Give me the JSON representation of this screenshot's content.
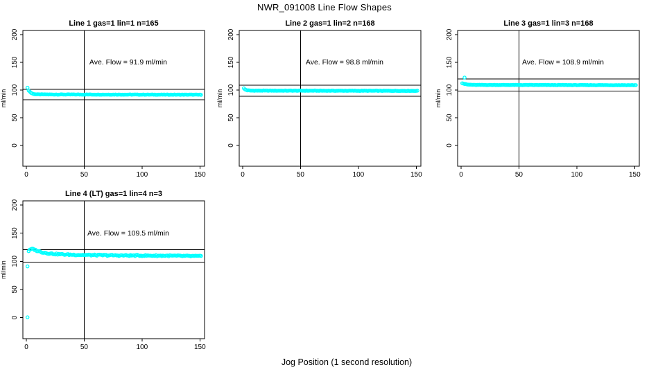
{
  "figure": {
    "title": "NWR_091008  Line Flow Shapes",
    "xlabel": "Jog Position (1 second resolution)",
    "background": "#ffffff",
    "point_color": "#00ffff",
    "axis_color": "#000000"
  },
  "chart_data": {
    "type": "scatter",
    "title": "NWR_091008  Line Flow Shapes",
    "xlabel": "Jog Position (1 second resolution)",
    "ylabel": "ml/min",
    "x_ticks": [
      0,
      50,
      100,
      150
    ],
    "y_ticks": [
      0,
      50,
      100,
      150,
      200
    ],
    "xlim": [
      -3,
      154
    ],
    "ylim": [
      -37.5,
      207.5
    ],
    "grid": false,
    "marker": "open-circle",
    "vline_x": 50,
    "ref_line_rule": "average flow plus/minus 10 percent",
    "panels": [
      {
        "title": "Line 1 gas=1 lin=1 n=165",
        "n": 165,
        "ave_flow": 91.9,
        "ave_flow_label": "Ave. Flow =  91.9  ml/min",
        "ref_lines": [
          101.1,
          82.7
        ],
        "x_start": 1,
        "x_max": 151,
        "anchors": [
          [
            1,
            104
          ],
          [
            2,
            99.5
          ],
          [
            3,
            97
          ],
          [
            4,
            95
          ],
          [
            6,
            93
          ],
          [
            9,
            92.2
          ],
          [
            20,
            92
          ],
          [
            151,
            91.6
          ]
        ],
        "outliers": [],
        "noise": 0.35
      },
      {
        "title": "Line 2 gas=1 lin=2 n=168",
        "n": 168,
        "ave_flow": 98.8,
        "ave_flow_label": "Ave. Flow =  98.8  ml/min",
        "ref_lines": [
          108.7,
          88.9
        ],
        "x_start": 1,
        "x_max": 151,
        "anchors": [
          [
            1,
            103
          ],
          [
            2,
            101
          ],
          [
            4,
            99.5
          ],
          [
            7,
            99
          ],
          [
            151,
            98.6
          ]
        ],
        "outliers": [],
        "noise": 0.35
      },
      {
        "title": "Line 3 gas=1 lin=3 n=168",
        "n": 168,
        "ave_flow": 108.9,
        "ave_flow_label": "Ave. Flow =  108.9  ml/min",
        "ref_lines": [
          119.8,
          98.0
        ],
        "x_start": 1,
        "x_max": 151,
        "anchors": [
          [
            1,
            112.5
          ],
          [
            3,
            111
          ],
          [
            6,
            109.8
          ],
          [
            12,
            109.2
          ],
          [
            151,
            108.8
          ]
        ],
        "outliers": [
          [
            3,
            122.5
          ]
        ],
        "noise": 0.35
      },
      {
        "title": "Line 4 (LT) gas=1 lin=4 n=3",
        "n": 3,
        "ave_flow": 109.5,
        "ave_flow_label": "Ave. Flow =  109.5  ml/min",
        "ref_lines": [
          120.4,
          98.6
        ],
        "x_start": 2,
        "x_max": 151,
        "anchors": [
          [
            2,
            118.5
          ],
          [
            4,
            121.5
          ],
          [
            6,
            121.8
          ],
          [
            9,
            119
          ],
          [
            13,
            116.5
          ],
          [
            18,
            114.5
          ],
          [
            25,
            113
          ],
          [
            35,
            112
          ],
          [
            50,
            111.3
          ],
          [
            80,
            110.5
          ],
          [
            120,
            110
          ],
          [
            151,
            109
          ]
        ],
        "outliers": [
          [
            1,
            91
          ],
          [
            1,
            0.5
          ]
        ],
        "noise": 1.1
      }
    ]
  }
}
